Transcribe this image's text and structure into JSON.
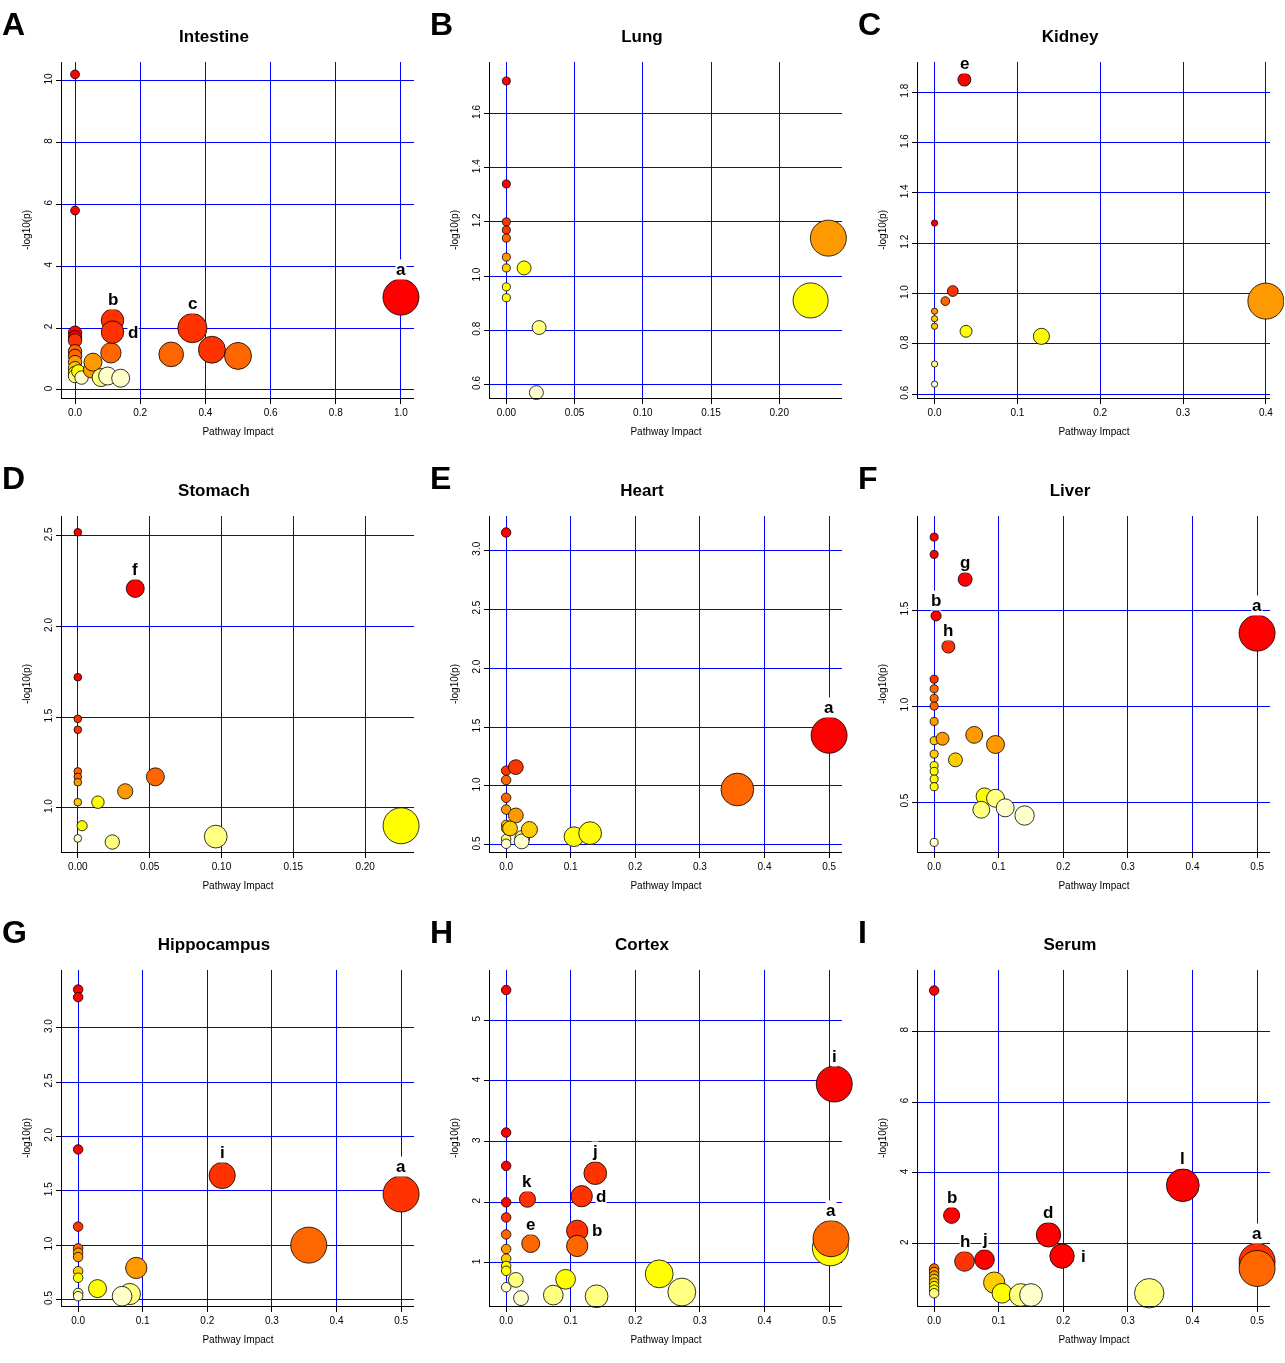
{
  "chart_data": [
    {
      "type": "bubble",
      "title": "Intestine",
      "xlabel": "Pathway Impact",
      "ylabel": "-log10(p)",
      "grid": true,
      "xlim": [
        -0.04,
        1.04
      ],
      "ylim": [
        -0.26,
        10.6
      ],
      "xticks": [
        {
          "value": 0,
          "label": "0.0"
        },
        0.2,
        0.4,
        0.6,
        0.8,
        {
          "value": 1,
          "label": "1.0"
        }
      ],
      "yticks": [
        0,
        2,
        4,
        6,
        8,
        10
      ],
      "x": [
        0,
        0,
        0,
        0,
        0,
        0,
        0,
        0,
        0,
        0,
        0,
        0.01,
        0.02,
        0.05,
        0.055,
        0.08,
        0.1,
        0.14,
        0.11,
        0.115,
        0.115,
        0.36,
        0.295,
        0.42,
        0.5,
        1.0
      ],
      "values": [
        10.2,
        5.8,
        1.85,
        1.7,
        1.6,
        1.25,
        1.1,
        0.9,
        0.7,
        0.55,
        0.45,
        0.6,
        0.4,
        0.65,
        0.9,
        0.4,
        0.45,
        0.38,
        1.2,
        2.25,
        1.87,
        2.0,
        1.15,
        1.3,
        1.1,
        3.0
      ],
      "sizes": [
        0.06,
        0.06,
        0.14,
        0.14,
        0.14,
        0.14,
        0.14,
        0.14,
        0.14,
        0.14,
        0.14,
        0.14,
        0.14,
        0.2,
        0.25,
        0.25,
        0.25,
        0.25,
        0.32,
        0.39,
        0.39,
        0.66,
        0.47,
        0.56,
        0.56,
        1
      ],
      "colors": [
        "#ff0000",
        "#ff0000",
        "#ff0000",
        "#ff0000",
        "#ff3300",
        "#ff6600",
        "#ff6600",
        "#ff9900",
        "#ffcc00",
        "#ffff00",
        "#ffff80",
        "#ffff00",
        "#ffffcc",
        "#ff9900",
        "#ff9900",
        "#ffff80",
        "#ffffcc",
        "#ffffcc",
        "#ff6600",
        "#ff3300",
        "#ff3300",
        "#ff3300",
        "#ff6600",
        "#ff3300",
        "#ff6600",
        "#ff0000"
      ],
      "annotations": [
        "A",
        {
          "text": "b",
          "x": 0.115,
          "y": 2.25
        },
        {
          "text": "d",
          "x": 0.115,
          "y": 1.87
        },
        {
          "text": "c",
          "x": 0.36,
          "y": 2.0
        },
        {
          "text": "a",
          "x": 1.0,
          "y": 3.0
        }
      ]
    },
    {
      "type": "bubble",
      "title": "Lung",
      "xlabel": "Pathway Impact",
      "ylabel": "-log10(p)",
      "grid": true,
      "xlim": [
        -0.012,
        0.246
      ],
      "ylim": [
        0.55,
        1.79
      ],
      "xticks": [
        {
          "value": 0,
          "label": "0.00"
        },
        0.05,
        {
          "value": 0.1,
          "label": "0.10"
        },
        0.15,
        {
          "value": 0.2,
          "label": "0.20"
        }
      ],
      "yticks": [
        0.6,
        0.8,
        {
          "value": 1,
          "label": "1.0"
        },
        1.2,
        1.4,
        1.6
      ],
      "x": [
        0,
        0,
        0,
        0,
        0,
        0,
        0,
        0,
        0,
        0.013,
        0.024,
        0.022,
        0.223,
        0.236
      ],
      "values": [
        1.72,
        1.34,
        1.2,
        1.17,
        1.14,
        1.07,
        1.03,
        0.96,
        0.92,
        1.03,
        0.81,
        0.57,
        0.91,
        1.14
      ],
      "sizes": [
        0.05,
        0.05,
        0.05,
        0.05,
        0.05,
        0.05,
        0.05,
        0.05,
        0.05,
        0.15,
        0.15,
        0.15,
        0.95,
        1
      ],
      "colors": [
        "#ff0000",
        "#ff0000",
        "#ff3300",
        "#ff3300",
        "#ff6600",
        "#ff9900",
        "#ffcc00",
        "#ffff00",
        "#ffff00",
        "#ffff00",
        "#ffff80",
        "#ffffcc",
        "#ffff00",
        "#ff9900"
      ],
      "annotations": [
        "B"
      ]
    },
    {
      "type": "bubble",
      "title": "Kidney",
      "xlabel": "Pathway Impact",
      "ylabel": "-log10(p)",
      "grid": true,
      "xlim": [
        -0.02,
        0.405
      ],
      "ylim": [
        0.585,
        1.92
      ],
      "xticks": [
        {
          "value": 0,
          "label": "0.0"
        },
        0.1,
        0.2,
        0.3,
        0.4
      ],
      "yticks": [
        0.6,
        0.8,
        {
          "value": 1,
          "label": "1.0"
        },
        1.2,
        1.4,
        1.6,
        1.8
      ],
      "x": [
        0.036,
        0,
        0.022,
        0.013,
        0,
        0,
        0,
        0.038,
        0.129,
        0,
        0,
        0.4
      ],
      "values": [
        1.85,
        1.28,
        1.01,
        0.97,
        0.93,
        0.9,
        0.87,
        0.85,
        0.83,
        0.72,
        0.64,
        0.97
      ],
      "sizes": [
        0.13,
        0.03,
        0.09,
        0.06,
        0.03,
        0.03,
        0.03,
        0.11,
        0.2,
        0.03,
        0.03,
        1
      ],
      "colors": [
        "#ff0000",
        "#ff0000",
        "#ff3300",
        "#ff6600",
        "#ff9900",
        "#ffcc00",
        "#ffcc00",
        "#ffff00",
        "#ffff00",
        "#ffff80",
        "#ffffcc",
        "#ff9900"
      ],
      "annotations": [
        "C",
        {
          "text": "e",
          "x": 0.036,
          "y": 1.85
        }
      ]
    },
    {
      "type": "bubble",
      "title": "Stomach",
      "xlabel": "Pathway Impact",
      "ylabel": "-log10(p)",
      "grid": true,
      "xlim": [
        -0.011,
        0.234
      ],
      "ylim": [
        0.755,
        2.61
      ],
      "xticks": [
        {
          "value": 0,
          "label": "0.00"
        },
        0.05,
        {
          "value": 0.1,
          "label": "0.10"
        },
        0.15,
        {
          "value": 0.2,
          "label": "0.20"
        }
      ],
      "yticks": [
        {
          "value": 1,
          "label": "1.0"
        },
        1.5,
        {
          "value": 2,
          "label": "2.0"
        },
        2.5
      ],
      "x": [
        0,
        0,
        0,
        0,
        0,
        0,
        0,
        0,
        0,
        0.003,
        0.014,
        0.04,
        0.033,
        0.054,
        0.024,
        0.096,
        0.225
      ],
      "values": [
        2.52,
        1.72,
        1.49,
        1.43,
        1.2,
        1.17,
        1.14,
        1.03,
        0.83,
        0.9,
        1.03,
        2.21,
        1.09,
        1.17,
        0.81,
        0.84,
        0.9
      ],
      "sizes": [
        0.045,
        0.045,
        0.045,
        0.045,
        0.045,
        0.045,
        0.045,
        0.045,
        0.045,
        0.08,
        0.12,
        0.25,
        0.18,
        0.25,
        0.16,
        0.4,
        1
      ],
      "colors": [
        "#ff0000",
        "#ff0000",
        "#ff3300",
        "#ff3300",
        "#ff6600",
        "#ff6600",
        "#ff9900",
        "#ffcc00",
        "#ffffcc",
        "#ffff00",
        "#ffff00",
        "#ff0000",
        "#ff9900",
        "#ff6600",
        "#ffff80",
        "#ffff80",
        "#ffff00"
      ],
      "annotations": [
        "D",
        {
          "text": "f",
          "x": 0.04,
          "y": 2.21
        }
      ]
    },
    {
      "type": "bubble",
      "title": "Heart",
      "xlabel": "Pathway Impact",
      "ylabel": "-log10(p)",
      "grid": true,
      "xlim": [
        -0.025,
        0.52
      ],
      "ylim": [
        0.44,
        3.29
      ],
      "xticks": [
        {
          "value": 0,
          "label": "0.0"
        },
        0.1,
        0.2,
        0.3,
        0.4,
        0.5
      ],
      "yticks": [
        0.5,
        {
          "value": 1,
          "label": "1.0"
        },
        1.5,
        {
          "value": 2,
          "label": "2.0"
        },
        2.5,
        {
          "value": 3,
          "label": "3.0"
        }
      ],
      "x": [
        0,
        0,
        0,
        0,
        0,
        0,
        0,
        0,
        0,
        0.015,
        0.015,
        0.006,
        0.025,
        0.024,
        0.036,
        0.105,
        0.13,
        0.358,
        0.5
      ],
      "values": [
        3.15,
        1.13,
        1.05,
        0.9,
        0.8,
        0.67,
        0.64,
        0.55,
        0.51,
        1.16,
        0.75,
        0.64,
        0.56,
        0.53,
        0.63,
        0.57,
        0.6,
        0.97,
        1.43
      ],
      "sizes": [
        0.07,
        0.07,
        0.07,
        0.07,
        0.07,
        0.07,
        0.07,
        0.07,
        0.07,
        0.17,
        0.17,
        0.17,
        0.17,
        0.17,
        0.2,
        0.3,
        0.4,
        0.83,
        1
      ],
      "colors": [
        "#ff0000",
        "#ff3300",
        "#ff6600",
        "#ff6600",
        "#ff9900",
        "#ffcc00",
        "#ffff00",
        "#ffff80",
        "#ffffcc",
        "#ff3300",
        "#ff9900",
        "#ffcc00",
        "#ffff80",
        "#ffffcc",
        "#ffcc00",
        "#ffff00",
        "#ffff00",
        "#ff6600",
        "#ff0000"
      ],
      "annotations": [
        "E",
        {
          "text": "a",
          "x": 0.5,
          "y": 1.43
        }
      ]
    },
    {
      "type": "bubble",
      "title": "Liver",
      "xlabel": "Pathway Impact",
      "ylabel": "-log10(p)",
      "grid": true,
      "xlim": [
        -0.025,
        0.52
      ],
      "ylim": [
        0.24,
        1.99
      ],
      "xticks": [
        {
          "value": 0,
          "label": "0.0"
        },
        0.1,
        0.2,
        0.3,
        0.4,
        0.5
      ],
      "yticks": [
        0.5,
        {
          "value": 1,
          "label": "1.0"
        },
        1.5
      ],
      "x": [
        0,
        0,
        0.048,
        0.003,
        0.022,
        0,
        0,
        0,
        0,
        0,
        0,
        0,
        0,
        0,
        0,
        0,
        0,
        0.013,
        0.033,
        0.062,
        0.095,
        0.078,
        0.095,
        0.073,
        0.11,
        0.14,
        0.5
      ],
      "values": [
        1.88,
        1.79,
        1.66,
        1.47,
        1.31,
        1.14,
        1.09,
        1.04,
        1.0,
        0.92,
        0.82,
        0.75,
        0.69,
        0.66,
        0.62,
        0.58,
        0.29,
        0.83,
        0.72,
        0.85,
        0.8,
        0.53,
        0.52,
        0.46,
        0.47,
        0.43,
        1.38
      ],
      "sizes": [
        0.05,
        0.05,
        0.15,
        0.08,
        0.13,
        0.05,
        0.05,
        0.05,
        0.05,
        0.05,
        0.05,
        0.05,
        0.05,
        0.05,
        0.05,
        0.05,
        0.05,
        0.13,
        0.15,
        0.22,
        0.25,
        0.22,
        0.25,
        0.22,
        0.25,
        0.29,
        1
      ],
      "colors": [
        "#ff0000",
        "#ff0000",
        "#ff0000",
        "#ff0000",
        "#ff3300",
        "#ff3300",
        "#ff6600",
        "#ff6600",
        "#ff6600",
        "#ff9900",
        "#ffcc00",
        "#ffcc00",
        "#ffff00",
        "#ffff00",
        "#ffff00",
        "#ffff00",
        "#ffffcc",
        "#ff9900",
        "#ffcc00",
        "#ff9900",
        "#ff9900",
        "#ffff00",
        "#ffff80",
        "#ffff80",
        "#ffffcc",
        "#ffffcc",
        "#ff0000"
      ],
      "annotations": [
        "F",
        {
          "text": "g",
          "x": 0.048,
          "y": 1.66
        },
        {
          "text": "b",
          "x": 0.003,
          "y": 1.47
        },
        {
          "text": "h",
          "x": 0.022,
          "y": 1.31
        },
        {
          "text": "a",
          "x": 0.5,
          "y": 1.38
        }
      ]
    },
    {
      "type": "bubble",
      "title": "Hippocampus",
      "xlabel": "Pathway Impact",
      "ylabel": "-log10(p)",
      "grid": true,
      "xlim": [
        -0.025,
        0.52
      ],
      "ylim": [
        0.44,
        3.53
      ],
      "xticks": [
        {
          "value": 0,
          "label": "0.0"
        },
        0.1,
        0.2,
        0.3,
        0.4,
        0.5
      ],
      "yticks": [
        0.5,
        {
          "value": 1,
          "label": "1.0"
        },
        1.5,
        {
          "value": 2,
          "label": "2.0"
        },
        2.5,
        {
          "value": 3,
          "label": "3.0"
        }
      ],
      "x": [
        0,
        0,
        0,
        0,
        0,
        0,
        0,
        0,
        0,
        0,
        0,
        0.223,
        0.5,
        0.357,
        0.09,
        0.03,
        0.08,
        0.068
      ],
      "values": [
        3.35,
        3.28,
        1.88,
        1.17,
        0.97,
        0.93,
        0.89,
        0.76,
        0.7,
        0.56,
        0.53,
        1.64,
        1.47,
        1.0,
        0.79,
        0.6,
        0.55,
        0.53
      ],
      "sizes": [
        0.07,
        0.07,
        0.07,
        0.07,
        0.07,
        0.07,
        0.07,
        0.07,
        0.07,
        0.07,
        0.07,
        0.53,
        1,
        1,
        0.35,
        0.25,
        0.35,
        0.3
      ],
      "colors": [
        "#ff0000",
        "#ff0000",
        "#ff0000",
        "#ff3300",
        "#ff6600",
        "#ff9900",
        "#ff9900",
        "#ffcc00",
        "#ffff00",
        "#ffff80",
        "#ffffcc",
        "#ff3300",
        "#ff3300",
        "#ff6600",
        "#ff9900",
        "#ffff00",
        "#ffff80",
        "#ffffcc"
      ],
      "annotations": [
        "G",
        {
          "text": "i",
          "x": 0.223,
          "y": 1.64
        },
        {
          "text": "a",
          "x": 0.5,
          "y": 1.47
        }
      ]
    },
    {
      "type": "bubble",
      "title": "Cortex",
      "xlabel": "Pathway Impact",
      "ylabel": "-log10(p)",
      "grid": true,
      "xlim": [
        -0.025,
        0.52
      ],
      "ylim": [
        0.29,
        5.83
      ],
      "xticks": [
        {
          "value": 0,
          "label": "0.0"
        },
        0.1,
        0.2,
        0.3,
        0.4,
        0.5
      ],
      "yticks": [
        1,
        2,
        3,
        4,
        5
      ],
      "x": [
        0,
        0,
        0,
        0,
        0,
        0,
        0,
        0,
        0,
        0,
        0,
        0.015,
        0.023,
        0.033,
        0.038,
        0.073,
        0.092,
        0.11,
        0.11,
        0.117,
        0.138,
        0.14,
        0.237,
        0.272,
        0.508,
        0.502,
        0.503
      ],
      "values": [
        5.5,
        3.15,
        2.6,
        2.0,
        1.75,
        1.47,
        1.23,
        1.07,
        0.95,
        0.87,
        0.6,
        0.72,
        0.42,
        2.05,
        1.32,
        0.47,
        0.73,
        1.53,
        1.28,
        2.1,
        2.48,
        0.45,
        0.82,
        0.52,
        3.95,
        1.25,
        1.4
      ],
      "sizes": [
        0.07,
        0.07,
        0.07,
        0.07,
        0.07,
        0.07,
        0.07,
        0.07,
        0.07,
        0.07,
        0.07,
        0.17,
        0.17,
        0.2,
        0.25,
        0.3,
        0.3,
        0.35,
        0.35,
        0.35,
        0.4,
        0.4,
        0.6,
        0.6,
        1,
        1,
        1
      ],
      "colors": [
        "#ff0000",
        "#ff0000",
        "#ff0000",
        "#ff0000",
        "#ff3300",
        "#ff6600",
        "#ff9900",
        "#ffcc00",
        "#ffff00",
        "#ffff00",
        "#ffffcc",
        "#ffff80",
        "#ffffcc",
        "#ff3300",
        "#ff6600",
        "#ffff80",
        "#ffff00",
        "#ff3300",
        "#ff6600",
        "#ff3300",
        "#ff3300",
        "#ffff80",
        "#ffff00",
        "#ffff80",
        "#ff0000",
        "#ffff00",
        "#ff6600"
      ],
      "annotations": [
        "H",
        {
          "text": "i",
          "x": 0.508,
          "y": 3.95
        },
        {
          "text": "j",
          "x": 0.138,
          "y": 2.48
        },
        {
          "text": "k",
          "x": 0.033,
          "y": 2.05
        },
        {
          "text": "d",
          "x": 0.117,
          "y": 2.1
        },
        {
          "text": "e",
          "x": 0.038,
          "y": 1.32
        },
        {
          "text": "b",
          "x": 0.11,
          "y": 1.53
        },
        {
          "text": "a",
          "x": 0.503,
          "y": 1.4
        }
      ]
    },
    {
      "type": "bubble",
      "title": "Serum",
      "xlabel": "Pathway Impact",
      "ylabel": "-log10(p)",
      "grid": true,
      "xlim": [
        -0.025,
        0.52
      ],
      "ylim": [
        0.24,
        9.73
      ],
      "xticks": [
        {
          "value": 0,
          "label": "0.0"
        },
        0.1,
        0.2,
        0.3,
        0.4,
        0.5
      ],
      "yticks": [
        2,
        4,
        6,
        8
      ],
      "x": [
        0,
        0,
        0,
        0,
        0,
        0,
        0,
        0,
        0,
        0.027,
        0.047,
        0.078,
        0.093,
        0.105,
        0.134,
        0.15,
        0.177,
        0.198,
        0.333,
        0.385,
        0.5,
        0.5
      ],
      "values": [
        9.15,
        1.3,
        1.2,
        1.1,
        1.0,
        0.9,
        0.8,
        0.7,
        0.6,
        2.8,
        1.5,
        1.55,
        0.9,
        0.6,
        0.55,
        0.55,
        2.25,
        1.65,
        0.6,
        3.65,
        1.5,
        1.3
      ],
      "sizes": [
        0.07,
        0.07,
        0.07,
        0.07,
        0.07,
        0.07,
        0.07,
        0.07,
        0.07,
        0.2,
        0.3,
        0.3,
        0.35,
        0.3,
        0.4,
        0.4,
        0.46,
        0.46,
        0.67,
        0.83,
        1,
        1
      ],
      "colors": [
        "#ff0000",
        "#ff6600",
        "#ff9900",
        "#ff9900",
        "#ffcc00",
        "#ffcc00",
        "#ffff00",
        "#ffff00",
        "#ffff80",
        "#ff0000",
        "#ff3300",
        "#ff0000",
        "#ffcc00",
        "#ffff00",
        "#ffff80",
        "#ffffcc",
        "#ff0000",
        "#ff0000",
        "#ffff80",
        "#ff0000",
        "#ff3300",
        "#ff6600"
      ],
      "annotations": [
        "I",
        {
          "text": "b",
          "x": 0.027,
          "y": 2.8
        },
        {
          "text": "h",
          "x": 0.047,
          "y": 1.5
        },
        {
          "text": "j",
          "x": 0.078,
          "y": 1.55
        },
        {
          "text": "d",
          "x": 0.177,
          "y": 2.25
        },
        {
          "text": "i",
          "x": 0.198,
          "y": 1.65
        },
        {
          "text": "l",
          "x": 0.385,
          "y": 3.65
        },
        {
          "text": "a",
          "x": 0.5,
          "y": 1.5
        }
      ]
    }
  ]
}
